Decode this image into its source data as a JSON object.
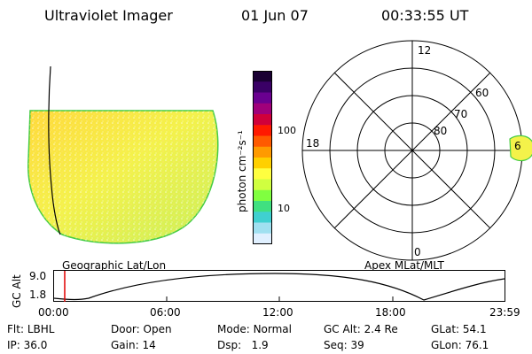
{
  "header": {
    "instrument": "Ultraviolet Imager",
    "date": "01 Jun 07",
    "time": "00:33:55 UT"
  },
  "panels": {
    "left_caption": "Geographic Lat/Lon",
    "right_caption": "Apex MLat/MLT"
  },
  "colorbar": {
    "label": "photon cm⁻²s⁻¹",
    "ticks": [
      "100",
      "10"
    ],
    "scale": "log",
    "colors": [
      "#1a0033",
      "#3a0066",
      "#6a0090",
      "#a0007a",
      "#d0003a",
      "#ff1a00",
      "#ff5a00",
      "#ff9a00",
      "#ffd000",
      "#ffff40",
      "#d0ff40",
      "#80ff40",
      "#40e080",
      "#40d0d0",
      "#a0e0f0",
      "#e0f0ff"
    ]
  },
  "polar": {
    "mlt_labels": [
      "12",
      "18",
      "0"
    ],
    "mlat_labels": [
      "60",
      "70",
      "80"
    ],
    "edge_value": "6"
  },
  "timeline": {
    "ylabel": "GC Alt",
    "yticks": [
      "9.0",
      "1.8"
    ],
    "xticks": [
      "00:00",
      "06:00",
      "12:00",
      "18:00",
      "23:59"
    ],
    "current_time_fraction": 0.0236
  },
  "info": {
    "row1": [
      {
        "label": "Flt:",
        "value": "LBHL"
      },
      {
        "label": "Door:",
        "value": "Open"
      },
      {
        "label": "Mode:",
        "value": "Normal"
      },
      {
        "label": "GC Alt:",
        "value": "2.4 Re"
      },
      {
        "label": "GLat:",
        "value": "54.1"
      }
    ],
    "row2": [
      {
        "label": "IP:",
        "value": "36.0"
      },
      {
        "label": "Gain:",
        "value": "14"
      },
      {
        "label": "Dsp:",
        "value": "1.9"
      },
      {
        "label": "Seq:",
        "value": "39"
      },
      {
        "label": "GLon:",
        "value": "76.1"
      }
    ]
  }
}
